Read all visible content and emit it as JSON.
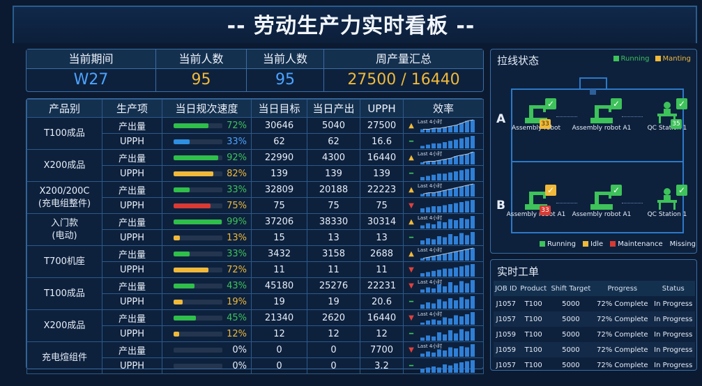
{
  "title": "-- 劳动生产力实时看板 --",
  "summary": [
    {
      "label": "当前期间",
      "value": "W27",
      "color": "blue"
    },
    {
      "label": "当前人数",
      "value": "95",
      "color": "gold"
    },
    {
      "label": "当前人数",
      "value": "95",
      "color": "blue"
    },
    {
      "label": "周产量汇总",
      "value": "27500 / 16440",
      "color": "gold"
    }
  ],
  "table": {
    "headers": [
      "产品别",
      "生产项",
      "当日规次速度",
      "当日目标",
      "当日产出",
      "UPPH",
      "效率"
    ],
    "spark_label": "Last 4小时",
    "products": [
      {
        "name": "T100成品",
        "sub": "",
        "rows": [
          {
            "item": "产出量",
            "pct": 72,
            "pct_text": "72%",
            "bar": "#2fbf4a",
            "txt": "#3ec25a",
            "target": "30646",
            "output": "5040",
            "upph": "27500",
            "ind": "up",
            "kind": "line",
            "spark": [
              3,
              3,
              4,
              4,
              5,
              6,
              7,
              9,
              11,
              12
            ]
          },
          {
            "item": "UPPH",
            "pct": 33,
            "pct_text": "33%",
            "bar": "#2f8fe0",
            "txt": "#4da3ff",
            "target": "62",
            "output": "62",
            "upph": "16.6",
            "ind": "flat",
            "kind": "bar",
            "spark": [
              2,
              3,
              4,
              4,
              5,
              6,
              7,
              8,
              9,
              10
            ]
          }
        ]
      },
      {
        "name": "X200成品",
        "sub": "",
        "rows": [
          {
            "item": "产出量",
            "pct": 92,
            "pct_text": "92%",
            "bar": "#2fbf4a",
            "txt": "#3ec25a",
            "target": "22990",
            "output": "4300",
            "upph": "16440",
            "ind": "up",
            "kind": "line",
            "spark": [
              2,
              3,
              3,
              4,
              5,
              6,
              8,
              9,
              10,
              12
            ]
          },
          {
            "item": "UPPH",
            "pct": 82,
            "pct_text": "82%",
            "bar": "#f0b93a",
            "txt": "#f0b93a",
            "target": "139",
            "output": "139",
            "upph": "139",
            "ind": "flat",
            "kind": "bar",
            "spark": [
              3,
              4,
              5,
              6,
              6,
              7,
              8,
              9,
              10,
              11
            ]
          }
        ]
      },
      {
        "name": "X200/200C",
        "sub": "(充电组整件)",
        "rows": [
          {
            "item": "产出量",
            "pct": 33,
            "pct_text": "33%",
            "bar": "#2fbf4a",
            "txt": "#3ec25a",
            "target": "32809",
            "output": "20188",
            "upph": "22223",
            "ind": "up",
            "kind": "line",
            "spark": [
              2,
              3,
              3,
              4,
              5,
              6,
              7,
              8,
              9,
              10
            ]
          },
          {
            "item": "UPPH",
            "pct": 75,
            "pct_text": "75%",
            "bar": "#d93a33",
            "txt": "#f0b93a",
            "target": "75",
            "output": "75",
            "upph": "75",
            "ind": "down",
            "kind": "bar",
            "spark": [
              4,
              5,
              6,
              6,
              7,
              8,
              9,
              10,
              11,
              12
            ]
          }
        ]
      },
      {
        "name": "入门款",
        "sub": "(电动)",
        "rows": [
          {
            "item": "产出量",
            "pct": 99,
            "pct_text": "99%",
            "bar": "#2fbf4a",
            "txt": "#3ec25a",
            "target": "37206",
            "output": "38330",
            "upph": "30314",
            "ind": "up",
            "kind": "bar",
            "spark": [
              3,
              5,
              4,
              7,
              6,
              9,
              8,
              10,
              9,
              12
            ]
          },
          {
            "item": "UPPH",
            "pct": 13,
            "pct_text": "13%",
            "bar": "#f0b93a",
            "txt": "#f0b93a",
            "target": "15",
            "output": "13",
            "upph": "13",
            "ind": "flat",
            "kind": "bar",
            "spark": [
              4,
              6,
              5,
              8,
              7,
              10,
              8,
              11,
              9,
              12
            ]
          }
        ]
      },
      {
        "name": "T700机座",
        "sub": "",
        "rows": [
          {
            "item": "产出量",
            "pct": 33,
            "pct_text": "33%",
            "bar": "#2fbf4a",
            "txt": "#3ec25a",
            "target": "3432",
            "output": "3158",
            "upph": "2688",
            "ind": "up",
            "kind": "line",
            "spark": [
              2,
              3,
              4,
              5,
              6,
              7,
              8,
              9,
              10,
              11
            ]
          },
          {
            "item": "UPPH",
            "pct": 72,
            "pct_text": "72%",
            "bar": "#f0b93a",
            "txt": "#f0b93a",
            "target": "11",
            "output": "11",
            "upph": "11",
            "ind": "down",
            "kind": "bar",
            "spark": [
              3,
              4,
              5,
              6,
              7,
              7,
              8,
              9,
              10,
              11
            ]
          }
        ]
      },
      {
        "name": "T100成品",
        "sub": "",
        "rows": [
          {
            "item": "产出量",
            "pct": 43,
            "pct_text": "43%",
            "bar": "#2fbf4a",
            "txt": "#3ec25a",
            "target": "45180",
            "output": "25276",
            "upph": "22231",
            "ind": "down",
            "kind": "bar",
            "spark": [
              3,
              5,
              4,
              8,
              6,
              10,
              7,
              11,
              9,
              12
            ]
          },
          {
            "item": "UPPH",
            "pct": 19,
            "pct_text": "19%",
            "bar": "#f0b93a",
            "txt": "#f0b93a",
            "target": "19",
            "output": "19",
            "upph": "20.6",
            "ind": "flat",
            "kind": "bar",
            "spark": [
              4,
              6,
              5,
              9,
              7,
              10,
              8,
              11,
              9,
              12
            ]
          }
        ]
      },
      {
        "name": "X200成品",
        "sub": "",
        "rows": [
          {
            "item": "产出量",
            "pct": 45,
            "pct_text": "45%",
            "bar": "#2fbf4a",
            "txt": "#3ec25a",
            "target": "21340",
            "output": "2620",
            "upph": "16440",
            "ind": "down",
            "kind": "bar",
            "spark": [
              2,
              4,
              5,
              4,
              7,
              6,
              9,
              8,
              10,
              12
            ]
          },
          {
            "item": "UPPH",
            "pct": 12,
            "pct_text": "12%",
            "bar": "#f0b93a",
            "txt": "#f0b93a",
            "target": "12",
            "output": "12",
            "upph": "12",
            "ind": "flat",
            "kind": "bar",
            "spark": [
              3,
              5,
              4,
              8,
              6,
              10,
              7,
              11,
              9,
              12
            ]
          }
        ]
      },
      {
        "name": "充电煊组件",
        "sub": "",
        "rows": [
          {
            "item": "产出量",
            "pct": 0,
            "pct_text": "0%",
            "bar": "#d93a33",
            "txt": "#e8eef8",
            "target": "0",
            "output": "0",
            "upph": "7700",
            "ind": "down",
            "kind": "bar",
            "spark": [
              3,
              5,
              4,
              7,
              6,
              9,
              8,
              10,
              9,
              12
            ]
          },
          {
            "item": "UPPH",
            "pct": 0,
            "pct_text": "0%",
            "bar": "#d93a33",
            "txt": "#e8eef8",
            "target": "0",
            "output": "0",
            "upph": "3.2",
            "ind": "flat",
            "kind": "bar",
            "spark": [
              4,
              5,
              6,
              5,
              8,
              7,
              9,
              10,
              11,
              12
            ]
          }
        ]
      }
    ]
  },
  "line_status": {
    "title": "拉线状态",
    "legend_top": [
      {
        "label": "Running",
        "color": "#3ec25a"
      },
      {
        "label": "Manting",
        "color": "#f0b93a"
      }
    ],
    "lines": [
      {
        "label": "A",
        "stations": [
          {
            "name": "Assembly robot",
            "count": "33",
            "count_color": "#f0b93a",
            "check": "#3ec25a"
          },
          {
            "name": "Assembly robot A1",
            "count": "",
            "count_color": "",
            "check": "#3ec25a"
          },
          {
            "name": "QC Station 1",
            "count": "35",
            "count_color": "#3ec25a",
            "check": "#3ec25a"
          }
        ]
      },
      {
        "label": "B",
        "stations": [
          {
            "name": "Assembly robot A1",
            "count": "33",
            "count_color": "#d93a33",
            "check": "#f0b93a"
          },
          {
            "name": "Assembly robot A1",
            "count": "",
            "count_color": "",
            "check": "#3ec25a"
          },
          {
            "name": "QC Station 1",
            "count": "",
            "count_color": "",
            "check": "#3ec25a"
          }
        ]
      }
    ],
    "legend_bottom": [
      {
        "label": "Running",
        "color": "#3ec25a"
      },
      {
        "label": "Idle",
        "color": "#f0b93a"
      },
      {
        "label": "Maintenance",
        "color": "#d93a33"
      },
      {
        "label": "Missing",
        "color": ""
      }
    ]
  },
  "jobs": {
    "title": "实时工单",
    "headers": [
      "JOB ID",
      "Product",
      "Shift Target",
      "Progress",
      "Status"
    ],
    "rows": [
      [
        "J1057",
        "T100",
        "5000",
        "72% Complete",
        "In Progress"
      ],
      [
        "J1057",
        "T100",
        "5000",
        "72% Complete",
        "In Progress"
      ],
      [
        "J1059",
        "T100",
        "5000",
        "72% Complete",
        "In Progress"
      ],
      [
        "J1059",
        "T100",
        "5000",
        "72% Complete",
        "In Progress"
      ],
      [
        "J1057",
        "T100",
        "5000",
        "72% Complete",
        "In Progress"
      ]
    ]
  }
}
